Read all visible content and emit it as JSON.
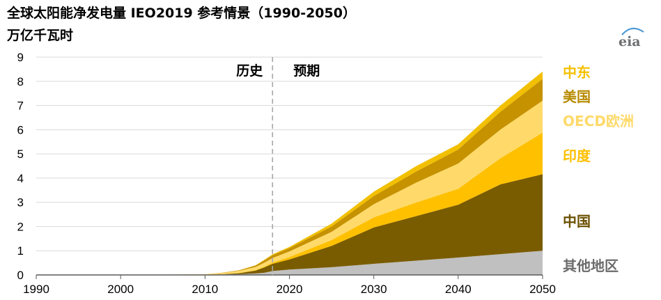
{
  "title": "全球太阳能净发电量 IEO2019 参考情景（1990-2050）",
  "unit": "万亿千瓦时",
  "logo_text": "eia",
  "chart_data": {
    "type": "area",
    "stacked": true,
    "x": [
      1990,
      2000,
      2010,
      2012,
      2014,
      2016,
      2017,
      2018,
      2020,
      2025,
      2030,
      2035,
      2040,
      2045,
      2050
    ],
    "series": [
      {
        "name": "其他地区",
        "color": "#c0c0c0",
        "label_color": "#6b6b6b",
        "values": [
          0,
          0,
          0.01,
          0.02,
          0.03,
          0.06,
          0.09,
          0.16,
          0.22,
          0.32,
          0.46,
          0.59,
          0.72,
          0.86,
          1.0
        ]
      },
      {
        "name": "中国",
        "color": "#7a5c00",
        "label_color": "#6b5000",
        "values": [
          0,
          0,
          0,
          0.01,
          0.04,
          0.12,
          0.22,
          0.3,
          0.42,
          0.88,
          1.5,
          1.84,
          2.18,
          2.88,
          3.16
        ]
      },
      {
        "name": "印度",
        "color": "#ffc000",
        "label_color": "#ffc000",
        "values": [
          0,
          0,
          0,
          0,
          0.01,
          0.02,
          0.03,
          0.05,
          0.1,
          0.24,
          0.42,
          0.56,
          0.66,
          1.08,
          1.72
        ]
      },
      {
        "name": "OECD欧洲",
        "color": "#ffda6a",
        "label_color": "#ffda6a",
        "values": [
          0,
          0,
          0.02,
          0.05,
          0.09,
          0.13,
          0.16,
          0.19,
          0.23,
          0.34,
          0.54,
          0.82,
          1.04,
          1.18,
          1.32
        ]
      },
      {
        "name": "美国",
        "color": "#c69200",
        "label_color": "#b78a00",
        "values": [
          0,
          0,
          0,
          0.01,
          0.02,
          0.06,
          0.1,
          0.12,
          0.14,
          0.22,
          0.34,
          0.46,
          0.58,
          0.74,
          0.9
        ]
      },
      {
        "name": "中东",
        "color": "#f2c000",
        "label_color": "#f5c000",
        "values": [
          0,
          0,
          0,
          0,
          0,
          0.01,
          0.02,
          0.03,
          0.05,
          0.12,
          0.18,
          0.22,
          0.22,
          0.26,
          0.3
        ]
      }
    ],
    "xlim": [
      1990,
      2050
    ],
    "ylim": [
      0,
      9
    ],
    "x_ticks": [
      1990,
      2000,
      2010,
      2020,
      2030,
      2040,
      2050
    ],
    "y_ticks": [
      0,
      1,
      2,
      3,
      4,
      5,
      6,
      7,
      8,
      9
    ],
    "divider_x": 2018,
    "annotations": {
      "history": "历史",
      "projection": "预期"
    }
  }
}
